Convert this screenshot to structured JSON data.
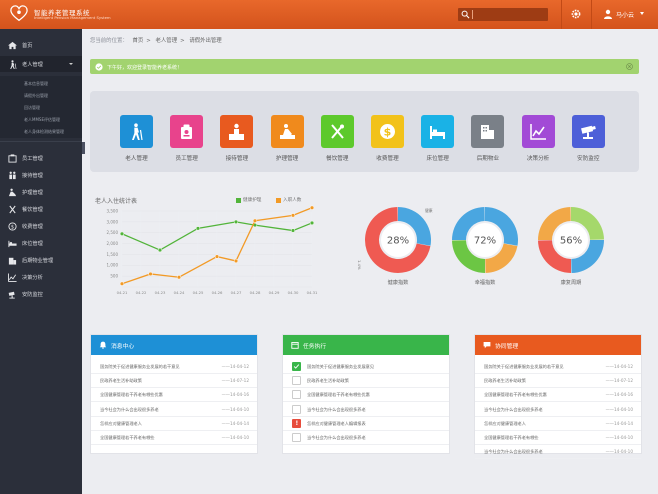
{
  "header": {
    "title": "智能养老管理系统",
    "subtitle": "Intelligent Pension Management System",
    "search_placeholder": "",
    "user_name": "马小云"
  },
  "sidebar": {
    "items": [
      {
        "label": "首页",
        "icon": "home-icon"
      },
      {
        "label": "老人管理",
        "icon": "walking-elder-icon"
      },
      {
        "label": "员工管理",
        "icon": "staff-icon"
      },
      {
        "label": "接待管理",
        "icon": "reception-icon"
      },
      {
        "label": "护理管理",
        "icon": "nursing-icon"
      },
      {
        "label": "餐饮管理",
        "icon": "dining-icon"
      },
      {
        "label": "收费管理",
        "icon": "charge-icon"
      },
      {
        "label": "床位管理",
        "icon": "bed-icon"
      },
      {
        "label": "后期物业管理",
        "icon": "property-icon"
      },
      {
        "label": "决策分析",
        "icon": "analysis-icon"
      },
      {
        "label": "安防监控",
        "icon": "camera-icon"
      }
    ],
    "sub_items": [
      "基本信息管理",
      "请假外出管理",
      "回访管理",
      "老人MMSE评估管理",
      "老人身体检测结果管理"
    ]
  },
  "breadcrumb": {
    "hint": "您当前的位置：",
    "items": [
      "首页",
      "老人管理",
      "请假外出管理"
    ]
  },
  "alert": {
    "text": "下午好，欢迎登录智能养老系统！"
  },
  "quick_links": [
    {
      "label": "老人管理",
      "color": "#1e90d6",
      "icon": "walking-elder-icon"
    },
    {
      "label": "员工管理",
      "color": "#e8438c",
      "icon": "staff-icon"
    },
    {
      "label": "接待管理",
      "color": "#e85a1f",
      "icon": "reception-icon"
    },
    {
      "label": "护理管理",
      "color": "#f08a1c",
      "icon": "nursing-icon"
    },
    {
      "label": "餐饮管理",
      "color": "#5dc92c",
      "icon": "dining-icon"
    },
    {
      "label": "收费管理",
      "color": "#f2c21a",
      "icon": "charge-icon"
    },
    {
      "label": "床位管理",
      "color": "#1ab2e6",
      "icon": "bed-icon"
    },
    {
      "label": "后期物业",
      "color": "#7a8088",
      "icon": "property-icon"
    },
    {
      "label": "决策分析",
      "color": "#a24ad6",
      "icon": "analysis-icon"
    },
    {
      "label": "安防监控",
      "color": "#4d5fd8",
      "icon": "camera-icon"
    }
  ],
  "chart_data": [
    {
      "type": "line",
      "title": "老人入住统计表",
      "x": [
        "04.21",
        "04.22",
        "04.23",
        "04.24",
        "04.25",
        "04.26",
        "04.27",
        "04.28",
        "04.29",
        "04.30",
        "04.31"
      ],
      "y_ticks": [
        "3,500",
        "3,000",
        "2,500",
        "2,000",
        "1,500",
        "1,000",
        "500"
      ],
      "ylim": [
        0,
        3500
      ],
      "grid": true,
      "legend_position": "top-right",
      "series": [
        {
          "name": "健康护理",
          "color": "#52b43a",
          "points": [
            [
              "04.21",
              2450
            ],
            [
              "04.23",
              1700
            ],
            [
              "04.25",
              2700
            ],
            [
              "04.27",
              3000
            ],
            [
              "04.28",
              2850
            ],
            [
              "04.30",
              2600
            ],
            [
              "04.31",
              2950
            ]
          ]
        },
        {
          "name": "入职人数",
          "color": "#f29a26",
          "points": [
            [
              "04.21",
              150
            ],
            [
              "04.22.5",
              600
            ],
            [
              "04.24",
              450
            ],
            [
              "04.26",
              1400
            ],
            [
              "04.27",
              1200
            ],
            [
              "04.28",
              3050
            ],
            [
              "04.30",
              3300
            ],
            [
              "04.31",
              3650
            ]
          ]
        }
      ]
    },
    {
      "type": "pie",
      "title": "健康指数",
      "center_label": "28%",
      "annotations": [
        "健康",
        "1.4%"
      ],
      "slices": [
        {
          "label": "a",
          "value": 28,
          "color": "#4aa6e0"
        },
        {
          "label": "b",
          "value": 72,
          "color": "#ef5a52"
        }
      ]
    },
    {
      "type": "pie",
      "title": "幸福指数",
      "center_label": "72%",
      "slices": [
        {
          "label": "a",
          "value": 28,
          "color": "#4aa6e0"
        },
        {
          "label": "b",
          "value": 22,
          "color": "#f2a847"
        },
        {
          "label": "c",
          "value": 25,
          "color": "#6cc644"
        },
        {
          "label": "d",
          "value": 25,
          "color": "#4aa6e0"
        }
      ]
    },
    {
      "type": "pie",
      "title": "康复周期",
      "center_label": "56%",
      "slices": [
        {
          "label": "a",
          "value": 25,
          "color": "#a5d86b"
        },
        {
          "label": "b",
          "value": 25,
          "color": "#4aa6e0"
        },
        {
          "label": "c",
          "value": 25,
          "color": "#ef5a52"
        },
        {
          "label": "d",
          "value": 25,
          "color": "#f2a847"
        }
      ]
    }
  ],
  "panels": {
    "messages": {
      "title": "消息中心",
      "color": "#1e90d6",
      "rows": [
        {
          "text": "国务院关于促进健康服务业发展的若干意见",
          "date": "——14-04-12"
        },
        {
          "text": "民政养老生活补助政策",
          "date": "——14-07-12"
        },
        {
          "text": "全国健康管理若干养老有哪些优惠",
          "date": "——14-04-16"
        },
        {
          "text": "当今社会为什么会出现很多养老",
          "date": "——14-04-10"
        },
        {
          "text": "怎样应对健康管理老人",
          "date": "——14-04-14"
        },
        {
          "text": "全国健康管理若干养老有哪些",
          "date": "——14-04-10"
        }
      ]
    },
    "tasks": {
      "title": "任务执行",
      "color": "#39b54a",
      "rows": [
        {
          "text": "国务院关于促进健康服务业发展意见",
          "status": "ok"
        },
        {
          "text": "民政养老生活补助政策",
          "status": ""
        },
        {
          "text": "全国健康管理若干养老有哪些优惠",
          "status": ""
        },
        {
          "text": "当今社会为什么会出现很多养老",
          "status": ""
        },
        {
          "text": "怎样应对健康管理老人编辑报表",
          "status": "warn"
        },
        {
          "text": "当今社会为什么会出现很多养老",
          "status": ""
        }
      ]
    },
    "collab": {
      "title": "协同管理",
      "color": "#e85a1f",
      "rows": [
        {
          "text": "国务院关于促进健康服务业发展的若干意见",
          "date": "——14-04-12"
        },
        {
          "text": "民政养老生活补助政策",
          "date": "——14-07-12"
        },
        {
          "text": "全国健康管理若干养老有哪些优惠",
          "date": "——14-04-16"
        },
        {
          "text": "当今社会为什么会出现很多养老",
          "date": "——14-04-10"
        },
        {
          "text": "怎样应对健康管理老人",
          "date": "——14-04-14"
        },
        {
          "text": "全国健康管理若干养老有哪些",
          "date": "——14-04-10"
        },
        {
          "text": "当今社会为什么会出现很多养老",
          "date": "——14-04-10"
        }
      ]
    }
  }
}
